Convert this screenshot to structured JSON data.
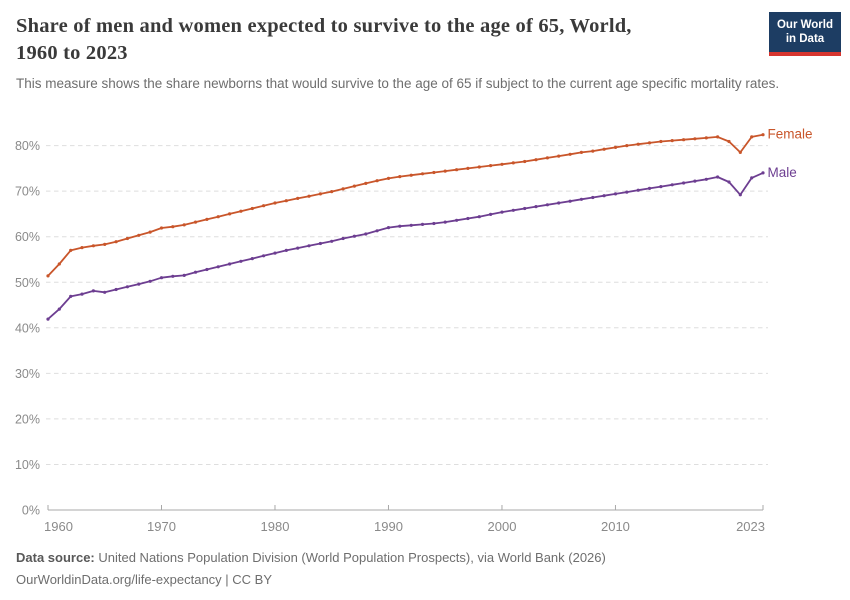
{
  "header": {
    "title_line1": "Share of men and women expected to survive to the age of 65, World,",
    "title_line2": "1960 to 2023",
    "subtitle": "This measure shows the share newborns that would survive to the age of 65 if subject to the current age specific mortality rates.",
    "logo": {
      "line1": "Our World",
      "line2": "in Data",
      "bg_color": "#1d3d63",
      "accent_color": "#d7352f"
    }
  },
  "footer": {
    "source_label": "Data source:",
    "source_text": " United Nations Population Division (World Population Prospects), via World Bank (2026)",
    "note_text": "OurWorldinData.org/life-expectancy | CC BY"
  },
  "chart_data": {
    "type": "line",
    "title": "Share of men and women expected to survive to the age of 65, World, 1960 to 2023",
    "xlabel": "",
    "ylabel": "",
    "grid": "horizontal-dashed",
    "legend_position": "end-of-line-labels",
    "xlim": [
      1960,
      2023
    ],
    "ylim": [
      0,
      85
    ],
    "xticks": [
      1960,
      1970,
      1980,
      1990,
      2000,
      2010,
      2023
    ],
    "yticks": [
      0,
      10,
      20,
      30,
      40,
      50,
      60,
      70,
      80
    ],
    "ytick_labels": [
      "0%",
      "10%",
      "20%",
      "30%",
      "40%",
      "50%",
      "60%",
      "70%",
      "80%"
    ],
    "x": [
      1960,
      1961,
      1962,
      1963,
      1964,
      1965,
      1966,
      1967,
      1968,
      1969,
      1970,
      1971,
      1972,
      1973,
      1974,
      1975,
      1976,
      1977,
      1978,
      1979,
      1980,
      1981,
      1982,
      1983,
      1984,
      1985,
      1986,
      1987,
      1988,
      1989,
      1990,
      1991,
      1992,
      1993,
      1994,
      1995,
      1996,
      1997,
      1998,
      1999,
      2000,
      2001,
      2002,
      2003,
      2004,
      2005,
      2006,
      2007,
      2008,
      2009,
      2010,
      2011,
      2012,
      2013,
      2014,
      2015,
      2016,
      2017,
      2018,
      2019,
      2020,
      2021,
      2022,
      2023
    ],
    "series": [
      {
        "name": "Female",
        "color": "#c9562b",
        "values": [
          51.4,
          54.0,
          57.0,
          57.6,
          58.0,
          58.3,
          58.9,
          59.6,
          60.3,
          61.0,
          61.9,
          62.2,
          62.6,
          63.2,
          63.8,
          64.4,
          65.0,
          65.6,
          66.2,
          66.8,
          67.4,
          67.9,
          68.4,
          68.9,
          69.4,
          69.9,
          70.5,
          71.1,
          71.7,
          72.3,
          72.8,
          73.2,
          73.5,
          73.8,
          74.1,
          74.4,
          74.7,
          75.0,
          75.3,
          75.6,
          75.9,
          76.2,
          76.5,
          76.9,
          77.3,
          77.7,
          78.1,
          78.5,
          78.8,
          79.2,
          79.6,
          80.0,
          80.3,
          80.6,
          80.9,
          81.1,
          81.3,
          81.5,
          81.7,
          81.9,
          80.9,
          78.5,
          81.9,
          82.4
        ]
      },
      {
        "name": "Male",
        "color": "#6d3e91",
        "values": [
          41.9,
          44.1,
          46.9,
          47.4,
          48.1,
          47.8,
          48.4,
          49.0,
          49.6,
          50.2,
          51.0,
          51.3,
          51.5,
          52.2,
          52.8,
          53.4,
          54.0,
          54.6,
          55.2,
          55.8,
          56.4,
          57.0,
          57.5,
          58.0,
          58.5,
          59.0,
          59.6,
          60.1,
          60.6,
          61.3,
          62.0,
          62.3,
          62.5,
          62.7,
          62.9,
          63.2,
          63.6,
          64.0,
          64.4,
          64.9,
          65.4,
          65.8,
          66.2,
          66.6,
          67.0,
          67.4,
          67.8,
          68.2,
          68.6,
          69.0,
          69.4,
          69.8,
          70.2,
          70.6,
          71.0,
          71.4,
          71.8,
          72.2,
          72.6,
          73.1,
          72.0,
          69.2,
          72.9,
          74.0
        ]
      }
    ]
  }
}
